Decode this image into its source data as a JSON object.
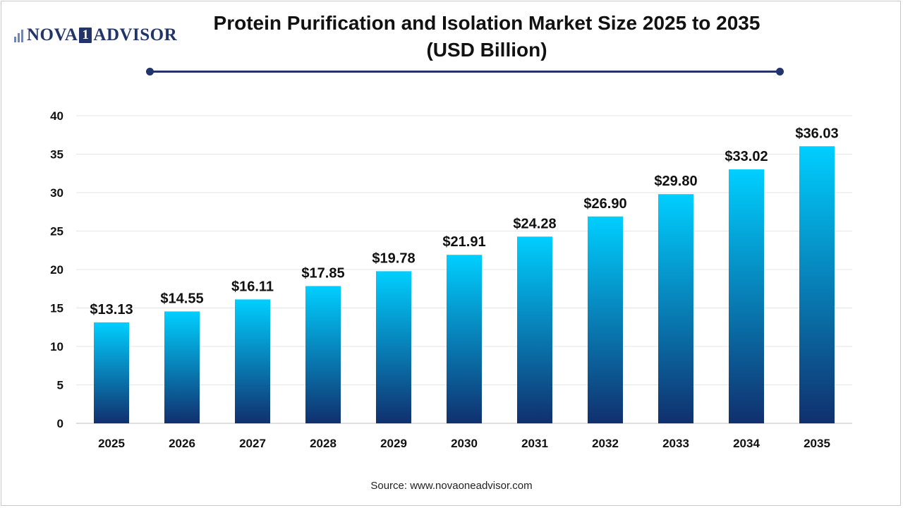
{
  "header": {
    "logo_left": "NOVA",
    "logo_box": "1",
    "logo_right": "ADVISOR",
    "title_line1": "Protein Purification and Isolation Market Size 2025 to 2035",
    "title_line2": "(USD Billion)"
  },
  "source": "Source: www.novaoneadvisor.com",
  "colors": {
    "bar_top": "#00cfff",
    "bar_bottom": "#10306e",
    "brand": "#22356b",
    "grid": "#e6e6e6"
  },
  "chart_data": {
    "type": "bar",
    "title": "Protein Purification and Isolation Market Size 2025 to 2035 (USD Billion)",
    "categories": [
      "2025",
      "2026",
      "2027",
      "2028",
      "2029",
      "2030",
      "2031",
      "2032",
      "2033",
      "2034",
      "2035"
    ],
    "values": [
      13.13,
      14.55,
      16.11,
      17.85,
      19.78,
      21.91,
      24.28,
      26.9,
      29.8,
      33.02,
      36.03
    ],
    "data_labels": [
      "$13.13",
      "$14.55",
      "$16.11",
      "$17.85",
      "$19.78",
      "$21.91",
      "$24.28",
      "$26.90",
      "$29.80",
      "$33.02",
      "$36.03"
    ],
    "xlabel": "",
    "ylabel": "",
    "ylim": [
      0,
      40
    ],
    "yticks": [
      0,
      5,
      10,
      15,
      20,
      25,
      30,
      35,
      40
    ],
    "grid": true,
    "legend": "none"
  }
}
